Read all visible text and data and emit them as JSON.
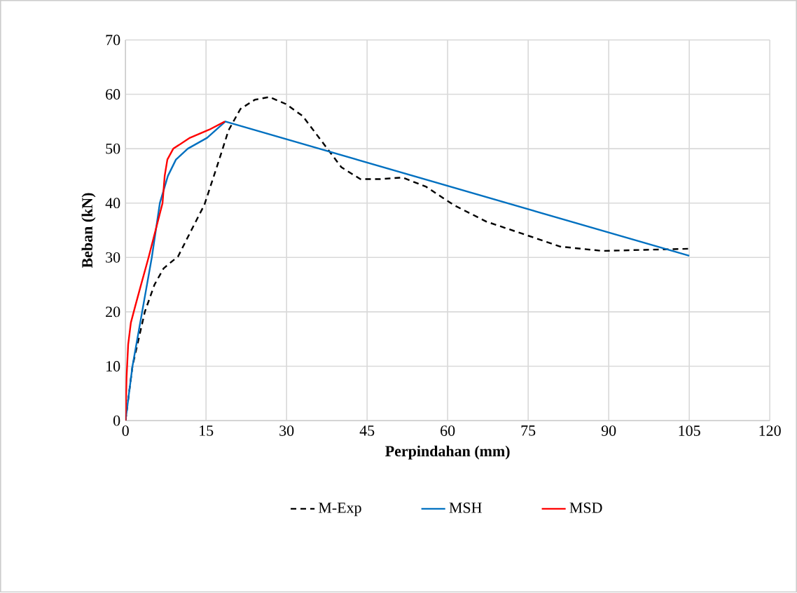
{
  "chart_data": {
    "type": "line",
    "xlabel": "Perpindahan (mm)",
    "ylabel": "Beban (kN)",
    "xlim": [
      0,
      120
    ],
    "ylim": [
      0,
      70
    ],
    "xticks": [
      0,
      15,
      30,
      45,
      60,
      75,
      90,
      105,
      120
    ],
    "yticks": [
      0,
      10,
      20,
      30,
      40,
      50,
      60,
      70
    ],
    "grid": true,
    "legend": "bottom",
    "marker": "none",
    "series": [
      {
        "name": "M-Exp",
        "color": "#000000",
        "line_style": "dashed",
        "x": [
          0,
          1.3,
          3.6,
          5.4,
          7.1,
          9.8,
          12,
          14.7,
          17,
          19.2,
          21.4,
          24.1,
          26.8,
          29.9,
          33,
          36.6,
          40.2,
          43.75,
          47.3,
          51.6,
          56,
          61.2,
          67.2,
          75,
          81,
          88.8,
          96.6,
          105
        ],
        "values": [
          0,
          10,
          20,
          25,
          28,
          30.2,
          34.5,
          39.7,
          46.6,
          53.4,
          57.3,
          59,
          59.5,
          58.2,
          56,
          51.3,
          46.6,
          44.4,
          44.4,
          44.7,
          43,
          39.6,
          36.6,
          34,
          32,
          31.2,
          31.4,
          31.6
        ]
      },
      {
        "name": "MSH",
        "color": "#0070c0",
        "line_style": "solid",
        "x": [
          0,
          1.3,
          3.1,
          4.0,
          4.9,
          6.4,
          7.9,
          9.4,
          11.6,
          15.2,
          18.6,
          105
        ],
        "values": [
          0,
          10,
          20,
          25,
          30,
          40,
          45,
          48,
          50,
          52,
          55,
          30.3
        ]
      },
      {
        "name": "MSD",
        "color": "#ff0000",
        "line_style": "solid",
        "x": [
          0,
          0.2,
          0.5,
          1,
          1.8,
          2.9,
          4.3,
          5.6,
          6.9,
          7.3,
          7.8,
          8.9,
          12,
          15.6,
          18.5
        ],
        "values": [
          0,
          8,
          14,
          18,
          21,
          25,
          30,
          35,
          40,
          45,
          48,
          50,
          52,
          53.5,
          55
        ]
      }
    ]
  }
}
